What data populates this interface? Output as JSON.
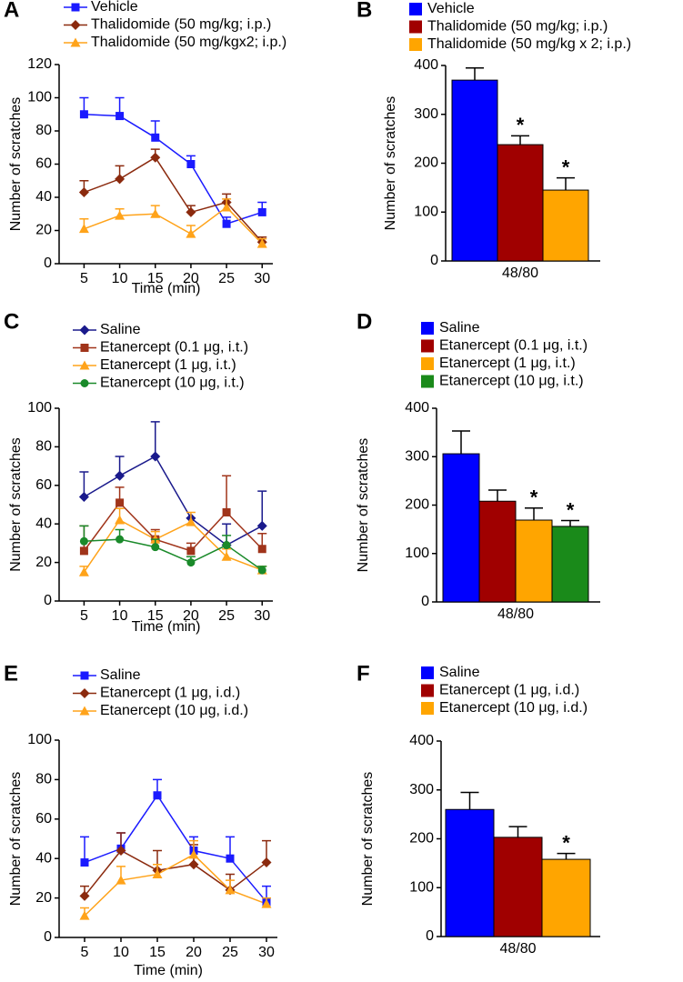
{
  "chart_data": [
    {
      "label": "A",
      "type": "line",
      "xlabel": "Time (min)",
      "ylabel": "Number of scratches",
      "x": [
        5,
        10,
        15,
        20,
        25,
        30
      ],
      "xlim": [
        1.5,
        31.5
      ],
      "xticks": [
        5,
        10,
        15,
        20,
        25,
        30
      ],
      "ylim": [
        0,
        120
      ],
      "yticks": [
        0,
        20,
        40,
        60,
        80,
        100,
        120
      ],
      "series": [
        {
          "name": "Vehicle",
          "color": "#1a1aff",
          "marker": "square",
          "values": [
            90,
            89,
            76,
            60,
            24,
            31
          ],
          "errors": [
            10,
            11,
            10,
            5,
            4,
            6
          ]
        },
        {
          "name": "Thalidomide (50 mg/kg; i.p.)",
          "color": "#8b2a0e",
          "marker": "diamond",
          "values": [
            43,
            51,
            64,
            31,
            37,
            13
          ],
          "errors": [
            7,
            8,
            5,
            4,
            5,
            3
          ]
        },
        {
          "name": "Thalidomide (50 mg/kgx2; i.p.)",
          "color": "#ffa31a",
          "marker": "triangle",
          "values": [
            21,
            29,
            30,
            18,
            34,
            12
          ],
          "errors": [
            6,
            4,
            5,
            5,
            5,
            3
          ]
        }
      ]
    },
    {
      "label": "B",
      "type": "bar",
      "ylabel": "Number of scratches",
      "categories": [
        "48/80"
      ],
      "ylim": [
        0,
        400
      ],
      "yticks": [
        0,
        100,
        200,
        300,
        400
      ],
      "series": [
        {
          "name": "Vehicle",
          "color": "#0000ff",
          "values": [
            370
          ],
          "errors": [
            25
          ]
        },
        {
          "name": "Thalidomide (50 mg/kg; i.p.)",
          "color": "#a00000",
          "values": [
            238
          ],
          "errors": [
            18
          ],
          "annotation": "*"
        },
        {
          "name": "Thalidomide (50 mg/kg x 2; i.p.)",
          "color": "#ffa500",
          "values": [
            145
          ],
          "errors": [
            25
          ],
          "annotation": "*"
        }
      ]
    },
    {
      "label": "C",
      "type": "line",
      "xlabel": "Time (min)",
      "ylabel": "Number of scratches",
      "x": [
        5,
        10,
        15,
        20,
        25,
        30
      ],
      "xlim": [
        1.5,
        31.5
      ],
      "xticks": [
        5,
        10,
        15,
        20,
        25,
        30
      ],
      "ylim": [
        0,
        100
      ],
      "yticks": [
        0,
        20,
        40,
        60,
        80,
        100
      ],
      "series": [
        {
          "name": "Saline",
          "color": "#1a1a8c",
          "marker": "diamond",
          "values": [
            54,
            65,
            75,
            43,
            29,
            39
          ],
          "errors": [
            13,
            10,
            18,
            0,
            11,
            18
          ]
        },
        {
          "name": "Etanercept (0.1 μg, i.t.)",
          "color": "#a0341a",
          "marker": "square",
          "values": [
            26,
            51,
            32,
            26,
            46,
            27
          ],
          "errors": [
            13,
            8,
            5,
            4,
            19,
            8
          ]
        },
        {
          "name": "Etanercept (1 μg, i.t.)",
          "color": "#ffa31a",
          "marker": "triangle",
          "values": [
            15,
            42,
            32,
            41,
            23,
            16
          ],
          "errors": [
            3,
            6,
            4,
            5,
            4,
            2
          ]
        },
        {
          "name": "Etanercept (10 μg, i.t.)",
          "color": "#1a8a2a",
          "marker": "circle",
          "values": [
            31,
            32,
            28,
            20,
            29,
            16
          ],
          "errors": [
            8,
            5,
            4,
            3,
            5,
            2
          ]
        }
      ]
    },
    {
      "label": "D",
      "type": "bar",
      "ylabel": "Number of scratches",
      "categories": [
        "48/80"
      ],
      "ylim": [
        0,
        400
      ],
      "yticks": [
        0,
        100,
        200,
        300,
        400
      ],
      "series": [
        {
          "name": "Saline",
          "color": "#0000ff",
          "values": [
            306
          ],
          "errors": [
            47
          ]
        },
        {
          "name": "Etanercept (0.1 μg, i.t.)",
          "color": "#a00000",
          "values": [
            208
          ],
          "errors": [
            23
          ]
        },
        {
          "name": "Etanercept (1 μg, i.t.)",
          "color": "#ffa500",
          "values": [
            169
          ],
          "errors": [
            25
          ],
          "annotation": "*"
        },
        {
          "name": "Etanercept (10 μg, i.t.)",
          "color": "#1a8a1a",
          "values": [
            156
          ],
          "errors": [
            12
          ],
          "annotation": "*"
        }
      ]
    },
    {
      "label": "E",
      "type": "line",
      "xlabel": "Time (min)",
      "ylabel": "Number of scratches",
      "x": [
        5,
        10,
        15,
        20,
        25,
        30
      ],
      "xlim": [
        1.5,
        31.5
      ],
      "xticks": [
        5,
        10,
        15,
        20,
        25,
        30
      ],
      "ylim": [
        0,
        100
      ],
      "yticks": [
        0,
        20,
        40,
        60,
        80,
        100
      ],
      "series": [
        {
          "name": "Saline",
          "color": "#1a1aff",
          "marker": "square",
          "values": [
            38,
            45,
            72,
            44,
            40,
            18
          ],
          "errors": [
            13,
            8,
            8,
            7,
            11,
            8
          ]
        },
        {
          "name": "Etanercept (1 μg, i.d.)",
          "color": "#8b2a0e",
          "marker": "diamond",
          "values": [
            21,
            44,
            34,
            37,
            24,
            38
          ],
          "errors": [
            5,
            9,
            10,
            10,
            8,
            11
          ]
        },
        {
          "name": "Etanercept (10 μg, i.d.)",
          "color": "#ffa31a",
          "marker": "triangle",
          "values": [
            11,
            29,
            32,
            42,
            24,
            17
          ],
          "errors": [
            4,
            7,
            5,
            7,
            5,
            3
          ]
        }
      ]
    },
    {
      "label": "F",
      "type": "bar",
      "ylabel": "Number of scratches",
      "categories": [
        "48/80"
      ],
      "ylim": [
        0,
        400
      ],
      "yticks": [
        0,
        100,
        200,
        300,
        400
      ],
      "series": [
        {
          "name": "Saline",
          "color": "#0000ff",
          "values": [
            260
          ],
          "errors": [
            35
          ]
        },
        {
          "name": "Etanercept (1 μg, i.d.)",
          "color": "#a00000",
          "values": [
            203
          ],
          "errors": [
            22
          ]
        },
        {
          "name": "Etanercept (10 μg, i.d.)",
          "color": "#ffa500",
          "values": [
            158
          ],
          "errors": [
            12
          ],
          "annotation": "*"
        }
      ]
    }
  ]
}
